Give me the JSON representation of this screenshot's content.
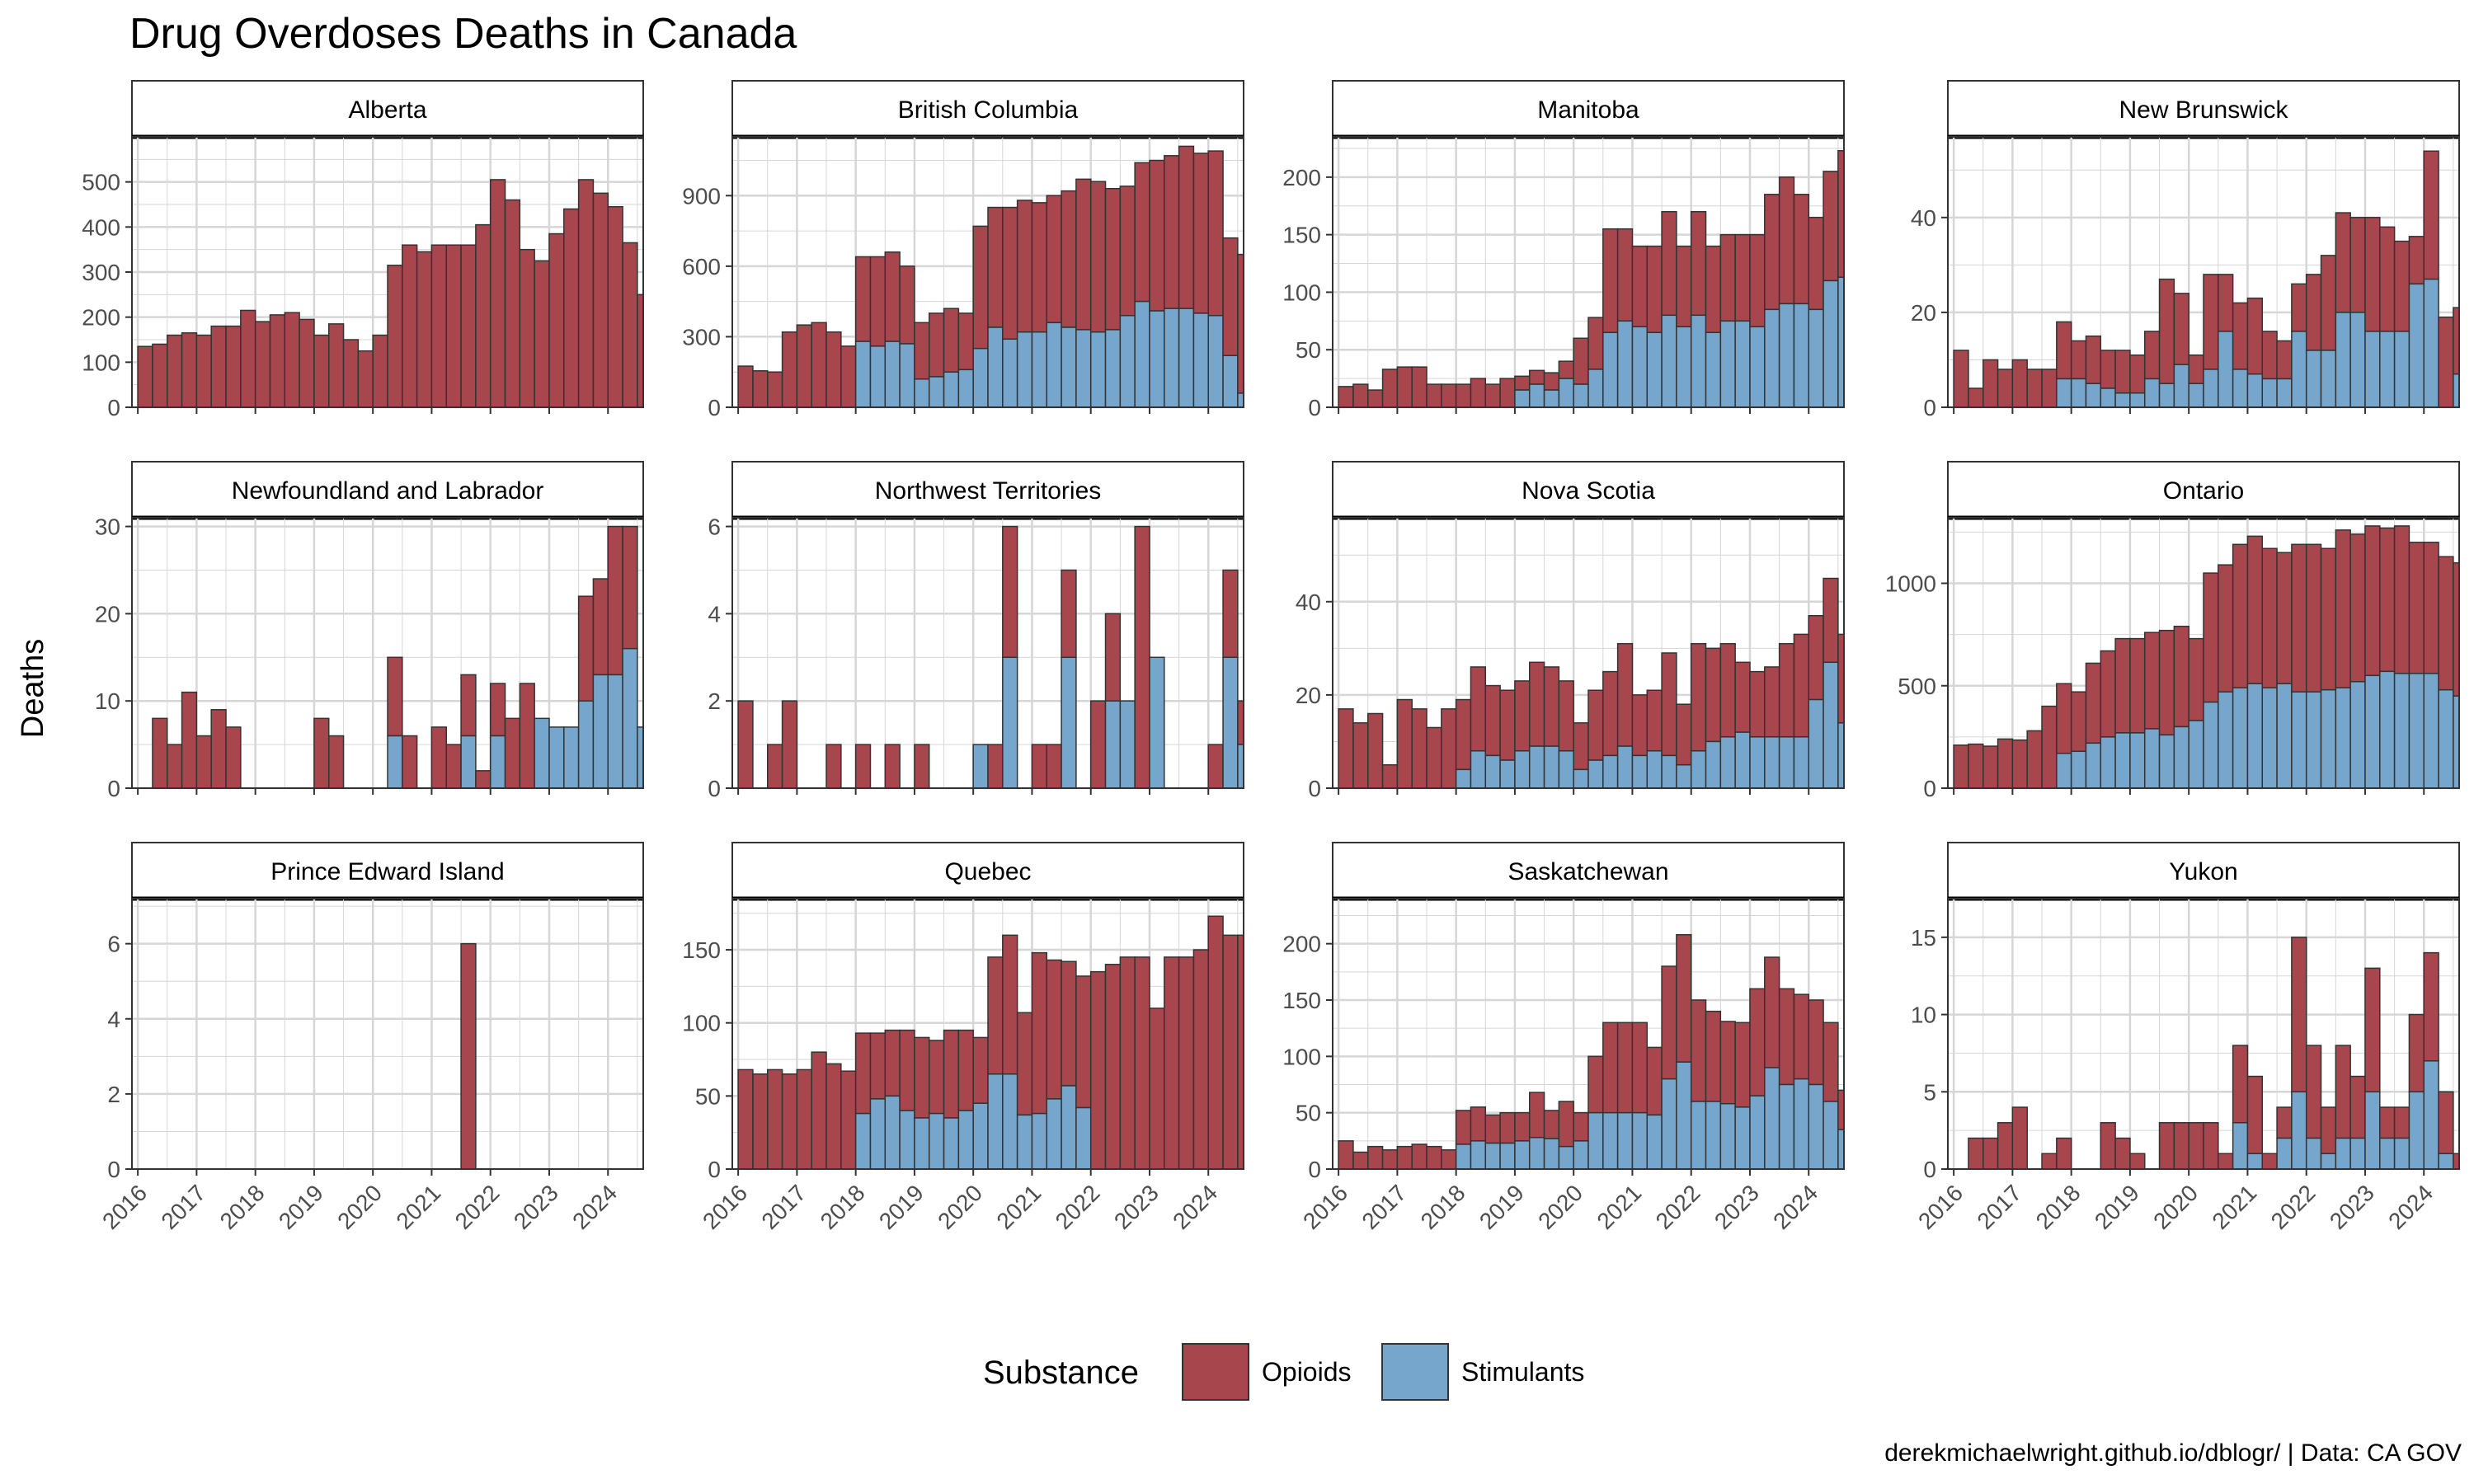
{
  "title": "Drug Overdoses Deaths in Canada",
  "ylabel": "Deaths",
  "caption": "derekmichaelwright.github.io/dblogr/ | Data: CA GOV",
  "legend": {
    "title": "Substance",
    "items": [
      {
        "label": "Opioids",
        "color": "#A8464D"
      },
      {
        "label": "Stimulants",
        "color": "#77A6CC"
      }
    ]
  },
  "colors": {
    "opioids": "#A8464D",
    "stimulants": "#77A6CC",
    "grid": "#d6d6d6",
    "border": "#333333"
  },
  "chart_data": {
    "type": "bar",
    "stacked": true,
    "x_start": 2016.0,
    "x_step": 0.25,
    "x_ticks": [
      "2016",
      "2017",
      "2018",
      "2019",
      "2020",
      "2021",
      "2022",
      "2023",
      "2024"
    ],
    "panels": [
      {
        "name": "Alberta",
        "y_max": 600,
        "y_ticks": [
          0,
          100,
          200,
          300,
          400,
          500
        ],
        "opioids": [
          135,
          140,
          160,
          165,
          160,
          180,
          180,
          215,
          190,
          205,
          210,
          195,
          160,
          185,
          150,
          125,
          160,
          315,
          360,
          345,
          360,
          360,
          360,
          405,
          505,
          460,
          350,
          325,
          385,
          440,
          505,
          475,
          445,
          365,
          250
        ],
        "stimulants": []
      },
      {
        "name": "British Columbia",
        "y_max": 1150,
        "y_ticks": [
          0,
          300,
          600,
          900
        ],
        "opioids": [
          175,
          155,
          150,
          320,
          350,
          360,
          320,
          260,
          360,
          380,
          380,
          330,
          240,
          270,
          270,
          240,
          520,
          510,
          560,
          560,
          550,
          540,
          580,
          640,
          640,
          600,
          550,
          590,
          640,
          650,
          690,
          680,
          700,
          500,
          590
        ],
        "stimulants": [
          0,
          0,
          0,
          0,
          0,
          0,
          0,
          0,
          280,
          260,
          280,
          270,
          120,
          130,
          150,
          160,
          250,
          340,
          290,
          320,
          320,
          360,
          340,
          330,
          320,
          330,
          390,
          450,
          410,
          420,
          420,
          400,
          390,
          220,
          60
        ]
      },
      {
        "name": "Manitoba",
        "y_max": 235,
        "y_ticks": [
          0,
          50,
          100,
          150,
          200
        ],
        "opioids": [
          18,
          20,
          15,
          33,
          35,
          35,
          20,
          20,
          20,
          25,
          20,
          25,
          12,
          12,
          15,
          15,
          40,
          45,
          90,
          80,
          70,
          75,
          90,
          70,
          90,
          75,
          75,
          75,
          80,
          100,
          110,
          95,
          80,
          95,
          110
        ],
        "stimulants": [
          0,
          0,
          0,
          0,
          0,
          0,
          0,
          0,
          0,
          0,
          0,
          0,
          15,
          20,
          15,
          25,
          20,
          33,
          65,
          75,
          70,
          65,
          80,
          70,
          80,
          65,
          75,
          75,
          70,
          85,
          90,
          90,
          85,
          110,
          113
        ]
      },
      {
        "name": "New Brunswick",
        "y_max": 57,
        "y_ticks": [
          0,
          20,
          40
        ],
        "opioids": [
          12,
          4,
          10,
          8,
          10,
          8,
          8,
          12,
          8,
          10,
          8,
          9,
          8,
          10,
          22,
          15,
          6,
          20,
          12,
          14,
          16,
          10,
          8,
          10,
          16,
          20,
          21,
          20,
          24,
          22,
          19,
          10,
          27,
          19,
          14
        ],
        "stimulants": [
          0,
          0,
          0,
          0,
          0,
          0,
          0,
          6,
          6,
          5,
          4,
          3,
          3,
          6,
          5,
          9,
          5,
          8,
          16,
          8,
          7,
          6,
          6,
          16,
          12,
          12,
          20,
          20,
          16,
          16,
          16,
          26,
          27,
          0,
          7
        ]
      },
      {
        "name": "Newfoundland and Labrador",
        "y_max": 31,
        "y_ticks": [
          0,
          10,
          20,
          30
        ],
        "opioids": [
          0,
          8,
          5,
          11,
          6,
          9,
          7,
          0,
          0,
          0,
          0,
          0,
          8,
          6,
          0,
          0,
          0,
          9,
          6,
          0,
          7,
          5,
          7,
          2,
          6,
          8,
          12,
          0,
          0,
          0,
          12,
          11,
          17,
          14,
          0
        ],
        "stimulants": [
          0,
          0,
          0,
          0,
          0,
          0,
          0,
          0,
          0,
          0,
          0,
          0,
          0,
          0,
          0,
          0,
          0,
          6,
          0,
          0,
          0,
          0,
          6,
          0,
          6,
          0,
          0,
          8,
          7,
          7,
          10,
          13,
          13,
          16,
          7
        ]
      },
      {
        "name": "Northwest Territories",
        "y_max": 6.2,
        "y_ticks": [
          0,
          2,
          4,
          6
        ],
        "opioids": [
          2,
          0,
          1,
          2,
          0,
          0,
          1,
          0,
          1,
          0,
          1,
          0,
          1,
          0,
          0,
          0,
          0,
          1,
          3,
          0,
          1,
          1,
          2,
          0,
          2,
          2,
          0,
          6,
          0,
          0,
          0,
          0,
          1,
          2,
          1
        ],
        "stimulants": [
          0,
          0,
          0,
          0,
          0,
          0,
          0,
          0,
          0,
          0,
          0,
          0,
          0,
          0,
          0,
          0,
          1,
          0,
          3,
          0,
          0,
          0,
          3,
          0,
          0,
          2,
          2,
          0,
          3,
          0,
          0,
          0,
          0,
          3,
          1
        ]
      },
      {
        "name": "Nova Scotia",
        "y_max": 58,
        "y_ticks": [
          0,
          20,
          40
        ],
        "opioids": [
          17,
          14,
          16,
          5,
          19,
          17,
          13,
          17,
          15,
          18,
          15,
          15,
          15,
          18,
          17,
          15,
          10,
          15,
          18,
          22,
          13,
          13,
          22,
          13,
          23,
          20,
          20,
          15,
          14,
          15,
          20,
          22,
          18,
          18,
          19
        ],
        "stimulants": [
          0,
          0,
          0,
          0,
          0,
          0,
          0,
          0,
          4,
          8,
          7,
          6,
          8,
          9,
          9,
          8,
          4,
          6,
          7,
          9,
          7,
          8,
          7,
          5,
          8,
          10,
          11,
          12,
          11,
          11,
          11,
          11,
          19,
          27,
          14
        ]
      },
      {
        "name": "Ontario",
        "y_max": 1320,
        "y_ticks": [
          0,
          500,
          1000
        ],
        "opioids": [
          210,
          215,
          205,
          240,
          235,
          280,
          400,
          340,
          290,
          390,
          420,
          460,
          460,
          470,
          510,
          490,
          400,
          630,
          620,
          700,
          720,
          680,
          640,
          720,
          720,
          690,
          770,
          720,
          730,
          700,
          720,
          640,
          640,
          650,
          650
        ],
        "stimulants": [
          0,
          0,
          0,
          0,
          0,
          0,
          0,
          170,
          180,
          220,
          250,
          270,
          270,
          290,
          260,
          300,
          330,
          420,
          470,
          490,
          510,
          490,
          510,
          470,
          470,
          480,
          490,
          520,
          550,
          570,
          560,
          560,
          560,
          480,
          450
        ]
      },
      {
        "name": "Prince Edward Island",
        "y_max": 7.2,
        "y_ticks": [
          0,
          2,
          4,
          6
        ],
        "opioids": [
          0,
          0,
          0,
          0,
          0,
          0,
          0,
          0,
          0,
          0,
          0,
          0,
          0,
          0,
          0,
          0,
          0,
          0,
          0,
          0,
          0,
          0,
          6,
          0,
          0,
          0,
          0,
          0,
          0,
          0,
          0,
          0,
          0,
          0,
          0
        ],
        "stimulants": []
      },
      {
        "name": "Quebec",
        "y_max": 185,
        "y_ticks": [
          0,
          50,
          100,
          150
        ],
        "opioids": [
          68,
          65,
          68,
          65,
          68,
          80,
          72,
          67,
          55,
          45,
          45,
          55,
          55,
          50,
          60,
          55,
          45,
          80,
          95,
          70,
          110,
          95,
          85,
          90,
          135,
          140,
          145,
          145,
          110,
          145,
          145,
          150,
          173,
          160,
          160
        ],
        "stimulants": [
          0,
          0,
          0,
          0,
          0,
          0,
          0,
          0,
          38,
          48,
          50,
          40,
          35,
          38,
          35,
          40,
          45,
          65,
          65,
          37,
          38,
          48,
          57,
          42,
          0,
          0,
          0,
          0,
          0,
          0,
          0,
          0,
          0,
          0,
          0
        ]
      },
      {
        "name": "Saskatchewan",
        "y_max": 240,
        "y_ticks": [
          0,
          50,
          100,
          150,
          200
        ],
        "opioids": [
          25,
          15,
          20,
          17,
          20,
          22,
          20,
          17,
          30,
          30,
          25,
          27,
          25,
          40,
          25,
          40,
          25,
          50,
          80,
          80,
          80,
          60,
          100,
          113,
          90,
          80,
          73,
          75,
          95,
          98,
          85,
          75,
          75,
          70,
          35
        ],
        "stimulants": [
          0,
          0,
          0,
          0,
          0,
          0,
          0,
          0,
          22,
          25,
          23,
          23,
          25,
          28,
          27,
          20,
          25,
          50,
          50,
          50,
          50,
          48,
          80,
          95,
          60,
          60,
          58,
          55,
          65,
          90,
          75,
          80,
          75,
          60,
          35
        ]
      },
      {
        "name": "Yukon",
        "y_max": 17.5,
        "y_ticks": [
          0,
          5,
          10,
          15
        ],
        "opioids": [
          0,
          2,
          2,
          3,
          4,
          0,
          1,
          2,
          0,
          0,
          3,
          2,
          1,
          0,
          3,
          3,
          3,
          3,
          1,
          5,
          5,
          1,
          2,
          10,
          6,
          3,
          6,
          4,
          8,
          2,
          2,
          5,
          7,
          4,
          1
        ],
        "stimulants": [
          0,
          0,
          0,
          0,
          0,
          0,
          0,
          0,
          0,
          0,
          0,
          0,
          0,
          0,
          0,
          0,
          0,
          0,
          0,
          3,
          1,
          0,
          2,
          5,
          2,
          1,
          2,
          2,
          5,
          2,
          2,
          5,
          7,
          1,
          0
        ]
      }
    ]
  }
}
